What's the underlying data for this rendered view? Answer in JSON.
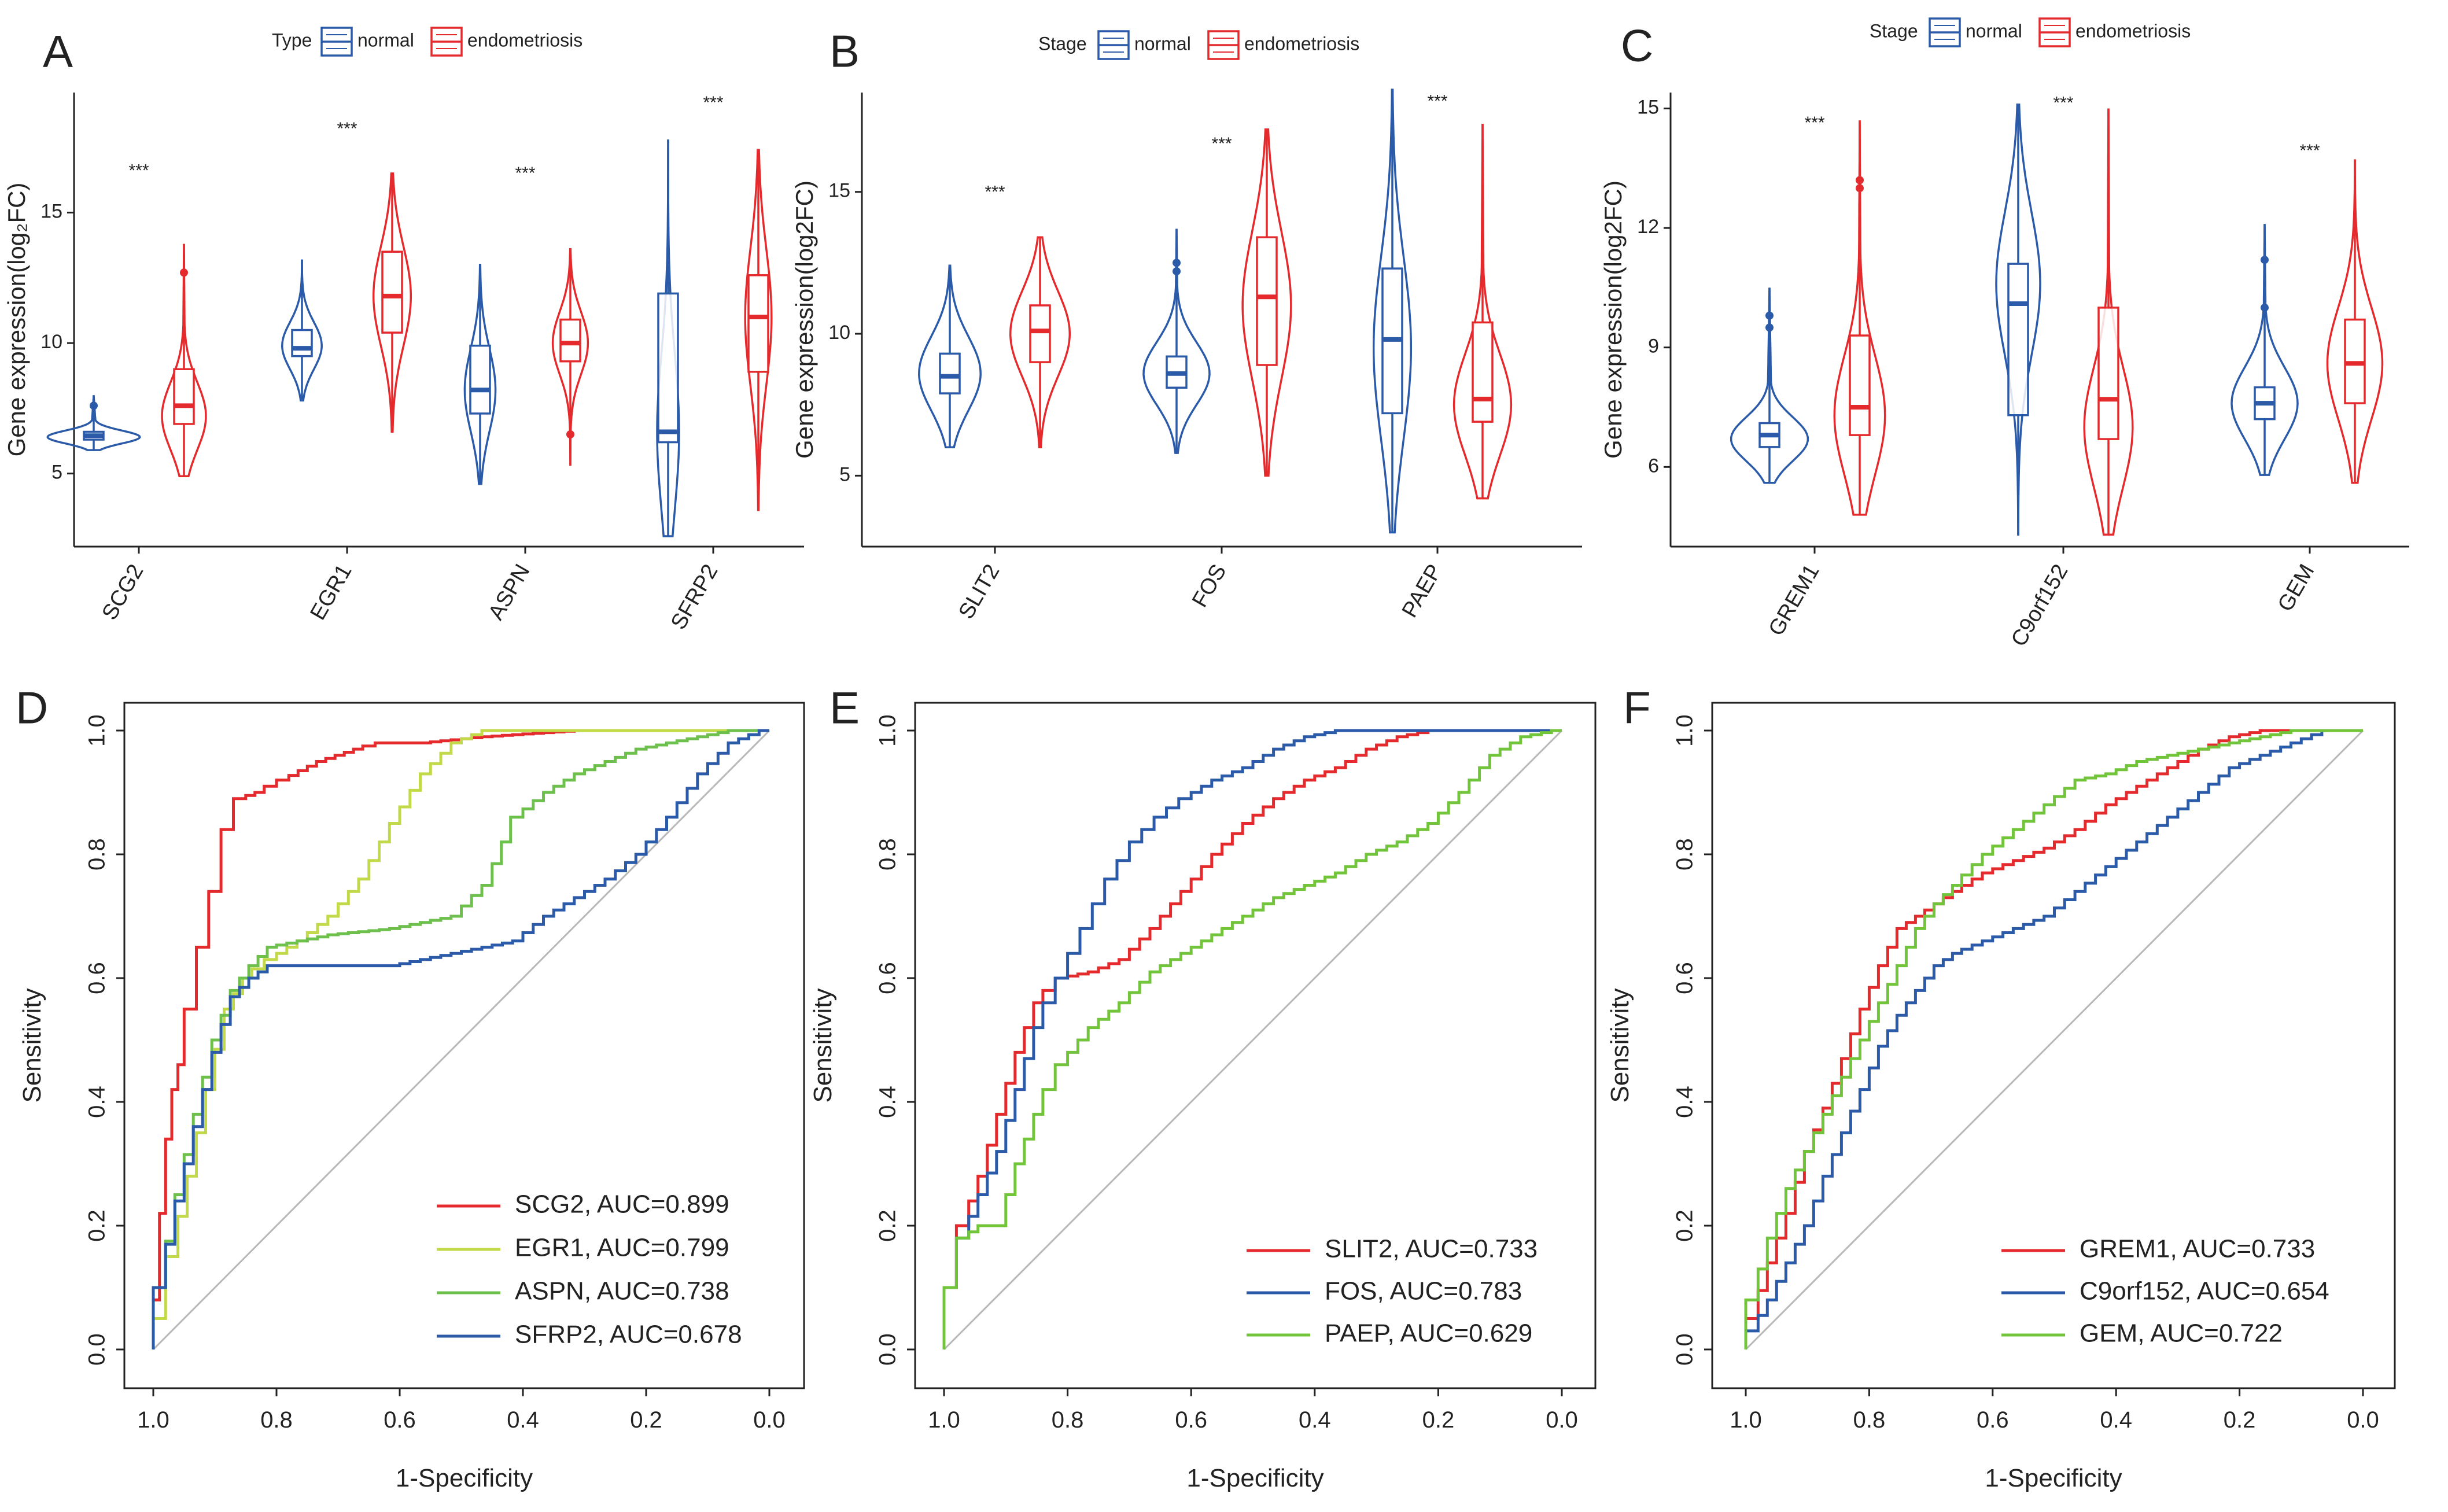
{
  "figure": {
    "colors": {
      "normal": "#2a5aa8",
      "endo": "#e42a2c",
      "red": "#e42a2c",
      "lime": "#c2d94a",
      "green": "#6ec04c",
      "blue": "#2a5aa8",
      "green2": "#72c43b",
      "diag": "#b8b8b8",
      "axis": "#222222"
    }
  },
  "chart_data": [
    {
      "panel": "A",
      "type": "violin",
      "ylabel": "Gene expression(log₂FC)",
      "ylim": [
        2.2,
        19.6
      ],
      "yticks": [
        5,
        10,
        15
      ],
      "legend": {
        "title": "Type",
        "entries": [
          "normal",
          "endometriosis"
        ]
      },
      "categories": [
        "SCG2",
        "EGR1",
        "ASPN",
        "SFRP2"
      ],
      "significance": "***",
      "sig_y": [
        16.4,
        18.0,
        16.3,
        19.0
      ],
      "groups": [
        {
          "category": "SCG2",
          "group": "normal",
          "min": 5.9,
          "q1": 6.3,
          "median": 6.45,
          "q3": 6.6,
          "max": 8.0,
          "peak": 6.4,
          "spread": 0.25,
          "width": 0.42,
          "outliers": [
            7.6
          ]
        },
        {
          "category": "SCG2",
          "group": "endometriosis",
          "min": 4.9,
          "q1": 6.9,
          "median": 7.6,
          "q3": 9.0,
          "max": 13.8,
          "peak": 7.2,
          "spread": 1.3,
          "width": 0.2,
          "outliers": [
            12.7
          ]
        },
        {
          "category": "EGR1",
          "group": "normal",
          "min": 7.8,
          "q1": 9.5,
          "median": 9.8,
          "q3": 10.5,
          "max": 13.2,
          "peak": 9.9,
          "spread": 0.9,
          "width": 0.18,
          "outliers": []
        },
        {
          "category": "EGR1",
          "group": "endometriosis",
          "min": 6.6,
          "q1": 10.4,
          "median": 11.8,
          "q3": 13.5,
          "max": 16.5,
          "peak": 11.8,
          "spread": 1.9,
          "width": 0.17,
          "outliers": []
        },
        {
          "category": "ASPN",
          "group": "normal",
          "min": 4.6,
          "q1": 7.3,
          "median": 8.2,
          "q3": 9.9,
          "max": 13.0,
          "peak": 8.2,
          "spread": 1.6,
          "width": 0.14,
          "outliers": []
        },
        {
          "category": "ASPN",
          "group": "endometriosis",
          "min": 5.3,
          "q1": 9.3,
          "median": 10.0,
          "q3": 10.9,
          "max": 13.6,
          "peak": 10.0,
          "spread": 1.2,
          "width": 0.16,
          "outliers": [
            6.5
          ]
        },
        {
          "category": "SFRP2",
          "group": "normal",
          "min": 2.6,
          "q1": 6.2,
          "median": 6.6,
          "q3": 11.9,
          "max": 17.8,
          "peak": 6.6,
          "spread": 3.0,
          "width": 0.1,
          "outliers": []
        },
        {
          "category": "SFRP2",
          "group": "endometriosis",
          "min": 3.6,
          "q1": 8.9,
          "median": 11.0,
          "q3": 12.6,
          "max": 17.4,
          "peak": 11.0,
          "spread": 2.6,
          "width": 0.12,
          "outliers": []
        }
      ]
    },
    {
      "panel": "B",
      "type": "violin",
      "ylabel": "Gene expression(log2FC)",
      "ylim": [
        2.5,
        18.5
      ],
      "yticks": [
        5,
        10,
        15
      ],
      "legend": {
        "title": "Stage",
        "entries": [
          "normal",
          "endometriosis"
        ]
      },
      "categories": [
        "SLIT2",
        "FOS",
        "PAEP"
      ],
      "significance": "***",
      "sig_y": [
        14.8,
        16.5,
        18.0
      ],
      "groups": [
        {
          "category": "SLIT2",
          "group": "normal",
          "min": 6.0,
          "q1": 7.9,
          "median": 8.5,
          "q3": 9.3,
          "max": 12.4,
          "peak": 8.6,
          "spread": 1.3,
          "width": 0.28,
          "outliers": []
        },
        {
          "category": "SLIT2",
          "group": "endometriosis",
          "min": 6.0,
          "q1": 9.0,
          "median": 10.1,
          "q3": 11.0,
          "max": 13.4,
          "peak": 10.0,
          "spread": 1.5,
          "width": 0.27,
          "outliers": []
        },
        {
          "category": "FOS",
          "group": "normal",
          "min": 5.8,
          "q1": 8.1,
          "median": 8.6,
          "q3": 9.2,
          "max": 13.7,
          "peak": 8.6,
          "spread": 1.1,
          "width": 0.3,
          "outliers": [
            12.2,
            12.5
          ]
        },
        {
          "category": "FOS",
          "group": "endometriosis",
          "min": 5.0,
          "q1": 8.9,
          "median": 11.3,
          "q3": 13.4,
          "max": 17.2,
          "peak": 11.0,
          "spread": 2.6,
          "width": 0.22,
          "outliers": []
        },
        {
          "category": "PAEP",
          "group": "normal",
          "min": 3.0,
          "q1": 7.2,
          "median": 9.8,
          "q3": 12.3,
          "max": 18.6,
          "peak": 9.5,
          "spread": 3.2,
          "width": 0.17,
          "outliers": []
        },
        {
          "category": "PAEP",
          "group": "endometriosis",
          "min": 4.2,
          "q1": 6.9,
          "median": 7.7,
          "q3": 10.4,
          "max": 17.4,
          "peak": 7.5,
          "spread": 1.8,
          "width": 0.26,
          "outliers": []
        }
      ]
    },
    {
      "panel": "C",
      "type": "violin",
      "ylabel": "Gene expression(log2FC)",
      "ylim": [
        4.0,
        15.4
      ],
      "yticks": [
        6,
        9,
        12,
        15
      ],
      "legend": {
        "title": "Stage",
        "entries": [
          "normal",
          "endometriosis"
        ]
      },
      "categories": [
        "GREM1",
        "C9orf152",
        "GEM"
      ],
      "significance": "***",
      "sig_y": [
        14.5,
        15.0,
        13.8
      ],
      "groups": [
        {
          "category": "GREM1",
          "group": "normal",
          "min": 5.6,
          "q1": 6.5,
          "median": 6.8,
          "q3": 7.1,
          "max": 10.5,
          "peak": 6.7,
          "spread": 0.55,
          "width": 0.35,
          "outliers": [
            9.5,
            9.8
          ]
        },
        {
          "category": "GREM1",
          "group": "endometriosis",
          "min": 4.8,
          "q1": 6.8,
          "median": 7.5,
          "q3": 9.3,
          "max": 14.7,
          "peak": 7.3,
          "spread": 1.5,
          "width": 0.23,
          "outliers": [
            13.0,
            13.2
          ]
        },
        {
          "category": "C9orf152",
          "group": "normal",
          "min": 4.3,
          "q1": 7.3,
          "median": 10.1,
          "q3": 11.1,
          "max": 15.1,
          "peak": 10.6,
          "spread": 1.8,
          "width": 0.2,
          "outliers": []
        },
        {
          "category": "C9orf152",
          "group": "endometriosis",
          "min": 4.3,
          "q1": 6.7,
          "median": 7.7,
          "q3": 10.0,
          "max": 15.0,
          "peak": 7.0,
          "spread": 1.5,
          "width": 0.22,
          "outliers": []
        },
        {
          "category": "GEM",
          "group": "normal",
          "min": 5.8,
          "q1": 7.2,
          "median": 7.6,
          "q3": 8.0,
          "max": 12.1,
          "peak": 7.6,
          "spread": 0.9,
          "width": 0.3,
          "outliers": [
            10.0,
            11.2
          ]
        },
        {
          "category": "GEM",
          "group": "endometriosis",
          "min": 5.6,
          "q1": 7.6,
          "median": 8.6,
          "q3": 9.7,
          "max": 13.7,
          "peak": 8.6,
          "spread": 1.4,
          "width": 0.25,
          "outliers": []
        }
      ]
    },
    {
      "panel": "D",
      "type": "line",
      "xlabel": "1-Specificity",
      "ylabel": "Sensitivity",
      "xlim": [
        1.0,
        0.0
      ],
      "ylim": [
        0.0,
        1.0
      ],
      "xticks": [
        1.0,
        0.8,
        0.6,
        0.4,
        0.2,
        0.0
      ],
      "yticks": [
        0.0,
        0.2,
        0.4,
        0.6,
        0.8,
        1.0
      ],
      "diagonal": true,
      "series": [
        {
          "name": "SCG2, AUC=0.899",
          "color": "red",
          "x": [
            1.0,
            0.99,
            0.98,
            0.97,
            0.96,
            0.95,
            0.93,
            0.91,
            0.89,
            0.87,
            0.85,
            0.82,
            0.78,
            0.72,
            0.66,
            0.62,
            0.55,
            0.45,
            0.3,
            0.0
          ],
          "y": [
            0.0,
            0.08,
            0.22,
            0.34,
            0.42,
            0.46,
            0.55,
            0.65,
            0.74,
            0.84,
            0.89,
            0.9,
            0.92,
            0.95,
            0.97,
            0.98,
            0.98,
            0.99,
            1.0,
            1.0
          ]
        },
        {
          "name": "EGR1, AUC=0.799",
          "color": "lime",
          "x": [
            1.0,
            0.98,
            0.96,
            0.93,
            0.9,
            0.87,
            0.84,
            0.8,
            0.75,
            0.7,
            0.65,
            0.6,
            0.55,
            0.5,
            0.45,
            0.4,
            0.3,
            0.2,
            0.0
          ],
          "y": [
            0.0,
            0.05,
            0.15,
            0.28,
            0.42,
            0.55,
            0.6,
            0.63,
            0.66,
            0.7,
            0.76,
            0.85,
            0.93,
            0.98,
            1.0,
            1.0,
            1.0,
            1.0,
            1.0
          ]
        },
        {
          "name": "ASPN, AUC=0.738",
          "color": "green",
          "x": [
            1.0,
            0.98,
            0.95,
            0.92,
            0.89,
            0.86,
            0.83,
            0.8,
            0.75,
            0.7,
            0.6,
            0.5,
            0.45,
            0.42,
            0.4,
            0.35,
            0.3,
            0.25,
            0.2,
            0.15,
            0.1,
            0.05,
            0.0
          ],
          "y": [
            0.0,
            0.1,
            0.25,
            0.38,
            0.5,
            0.58,
            0.62,
            0.65,
            0.66,
            0.67,
            0.68,
            0.7,
            0.75,
            0.82,
            0.86,
            0.9,
            0.93,
            0.95,
            0.97,
            0.98,
            0.99,
            1.0,
            1.0
          ]
        },
        {
          "name": "SFRP2, AUC=0.678",
          "color": "blue",
          "x": [
            1.0,
            0.98,
            0.95,
            0.92,
            0.89,
            0.86,
            0.83,
            0.8,
            0.75,
            0.7,
            0.6,
            0.5,
            0.4,
            0.35,
            0.3,
            0.25,
            0.2,
            0.15,
            0.1,
            0.05,
            0.0
          ],
          "y": [
            0.0,
            0.1,
            0.24,
            0.36,
            0.48,
            0.57,
            0.6,
            0.62,
            0.62,
            0.62,
            0.62,
            0.64,
            0.66,
            0.7,
            0.73,
            0.76,
            0.8,
            0.86,
            0.93,
            0.98,
            1.0
          ]
        }
      ]
    },
    {
      "panel": "E",
      "type": "line",
      "xlabel": "1-Specificity",
      "ylabel": "Sensitivity",
      "xlim": [
        1.0,
        0.0
      ],
      "ylim": [
        0.0,
        1.0
      ],
      "xticks": [
        1.0,
        0.8,
        0.6,
        0.4,
        0.2,
        0.0
      ],
      "yticks": [
        0.0,
        0.2,
        0.4,
        0.6,
        0.8,
        1.0
      ],
      "diagonal": true,
      "series": [
        {
          "name": "SLIT2, AUC=0.733",
          "color": "red",
          "x": [
            1.0,
            0.98,
            0.96,
            0.93,
            0.9,
            0.87,
            0.84,
            0.8,
            0.75,
            0.7,
            0.65,
            0.6,
            0.55,
            0.5,
            0.45,
            0.4,
            0.35,
            0.3,
            0.25,
            0.2,
            0.1,
            0.0
          ],
          "y": [
            0.0,
            0.1,
            0.2,
            0.28,
            0.38,
            0.48,
            0.56,
            0.6,
            0.61,
            0.63,
            0.68,
            0.74,
            0.8,
            0.85,
            0.89,
            0.92,
            0.94,
            0.97,
            0.99,
            1.0,
            1.0,
            1.0
          ]
        },
        {
          "name": "FOS, AUC=0.783",
          "color": "blue",
          "x": [
            1.0,
            0.98,
            0.96,
            0.93,
            0.9,
            0.87,
            0.84,
            0.8,
            0.76,
            0.72,
            0.68,
            0.64,
            0.6,
            0.55,
            0.5,
            0.45,
            0.4,
            0.35,
            0.3,
            0.25,
            0.2,
            0.0
          ],
          "y": [
            0.0,
            0.1,
            0.18,
            0.25,
            0.32,
            0.42,
            0.52,
            0.6,
            0.68,
            0.76,
            0.82,
            0.86,
            0.89,
            0.92,
            0.94,
            0.97,
            0.99,
            1.0,
            1.0,
            1.0,
            1.0,
            1.0
          ]
        },
        {
          "name": "PAEP, AUC=0.629",
          "color": "green2",
          "x": [
            1.0,
            0.98,
            0.96,
            0.93,
            0.9,
            0.87,
            0.84,
            0.8,
            0.75,
            0.7,
            0.65,
            0.6,
            0.55,
            0.5,
            0.45,
            0.4,
            0.35,
            0.3,
            0.25,
            0.2,
            0.15,
            0.1,
            0.05,
            0.0
          ],
          "y": [
            0.0,
            0.1,
            0.18,
            0.2,
            0.2,
            0.3,
            0.38,
            0.46,
            0.52,
            0.56,
            0.61,
            0.64,
            0.67,
            0.7,
            0.73,
            0.75,
            0.77,
            0.8,
            0.82,
            0.85,
            0.9,
            0.96,
            0.99,
            1.0
          ]
        }
      ]
    },
    {
      "panel": "F",
      "type": "line",
      "xlabel": "1-Specificity",
      "ylabel": "Sensitivity",
      "xlim": [
        1.0,
        0.0
      ],
      "ylim": [
        0.0,
        1.0
      ],
      "xticks": [
        1.0,
        0.8,
        0.6,
        0.4,
        0.2,
        0.0
      ],
      "yticks": [
        0.0,
        0.2,
        0.4,
        0.6,
        0.8,
        1.0
      ],
      "diagonal": true,
      "series": [
        {
          "name": "GREM1, AUC=0.733",
          "color": "red",
          "x": [
            1.0,
            0.98,
            0.95,
            0.92,
            0.89,
            0.86,
            0.83,
            0.8,
            0.77,
            0.74,
            0.71,
            0.68,
            0.65,
            0.6,
            0.55,
            0.5,
            0.45,
            0.4,
            0.35,
            0.3,
            0.25,
            0.2,
            0.15,
            0.1,
            0.0
          ],
          "y": [
            0.0,
            0.05,
            0.14,
            0.22,
            0.32,
            0.39,
            0.47,
            0.55,
            0.62,
            0.68,
            0.7,
            0.72,
            0.74,
            0.77,
            0.79,
            0.81,
            0.84,
            0.88,
            0.91,
            0.94,
            0.97,
            0.99,
            1.0,
            1.0,
            1.0
          ]
        },
        {
          "name": "C9orf152, AUC=0.654",
          "color": "blue",
          "x": [
            1.0,
            0.98,
            0.95,
            0.92,
            0.89,
            0.86,
            0.83,
            0.8,
            0.77,
            0.74,
            0.71,
            0.68,
            0.65,
            0.6,
            0.55,
            0.5,
            0.45,
            0.4,
            0.35,
            0.3,
            0.25,
            0.2,
            0.15,
            0.1,
            0.05,
            0.0
          ],
          "y": [
            0.0,
            0.03,
            0.08,
            0.14,
            0.2,
            0.28,
            0.35,
            0.42,
            0.49,
            0.54,
            0.58,
            0.62,
            0.64,
            0.66,
            0.68,
            0.7,
            0.74,
            0.78,
            0.82,
            0.86,
            0.9,
            0.94,
            0.96,
            0.98,
            1.0,
            1.0
          ]
        },
        {
          "name": "GEM, AUC=0.722",
          "color": "green2",
          "x": [
            1.0,
            0.98,
            0.95,
            0.92,
            0.89,
            0.86,
            0.83,
            0.8,
            0.77,
            0.74,
            0.71,
            0.68,
            0.65,
            0.6,
            0.55,
            0.5,
            0.45,
            0.4,
            0.35,
            0.3,
            0.25,
            0.2,
            0.15,
            0.1,
            0.05,
            0.0
          ],
          "y": [
            0.0,
            0.08,
            0.18,
            0.26,
            0.32,
            0.38,
            0.44,
            0.5,
            0.56,
            0.62,
            0.68,
            0.72,
            0.75,
            0.8,
            0.84,
            0.88,
            0.92,
            0.93,
            0.95,
            0.96,
            0.97,
            0.98,
            0.99,
            1.0,
            1.0,
            1.0
          ]
        }
      ]
    }
  ]
}
